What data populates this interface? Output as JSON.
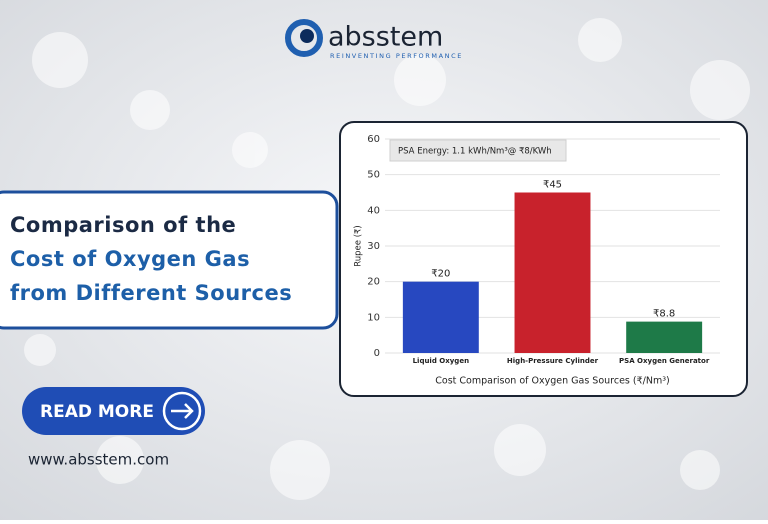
{
  "logo": {
    "name": "absstem",
    "tagline": "REINVENTING PERFORMANCE"
  },
  "heading": [
    "Comparison of the",
    "Cost of Oxygen Gas",
    "from Different Sources"
  ],
  "button": "READ MORE",
  "website": "www.absstem.com",
  "chart_data": {
    "type": "bar",
    "annotation": "PSA Energy: 1.1 kWh/Nm³@ ₹8/KWh",
    "categories": [
      "Liquid Oxygen",
      "High-Pressure Cylinder",
      "PSA Oxygen Generator"
    ],
    "values": [
      20,
      45,
      8.8
    ],
    "value_labels": [
      "₹20",
      "₹45",
      "₹8.8"
    ],
    "colors": [
      "#2748c0",
      "#c8222c",
      "#1e7a48"
    ],
    "ylabel": "Rupee (₹)",
    "xlabel": "Cost Comparison of Oxygen Gas Sources (₹/Nm³)",
    "ylim": [
      0,
      60
    ],
    "yticks": [
      0,
      10,
      20,
      30,
      40,
      50,
      60
    ],
    "grid": true
  }
}
